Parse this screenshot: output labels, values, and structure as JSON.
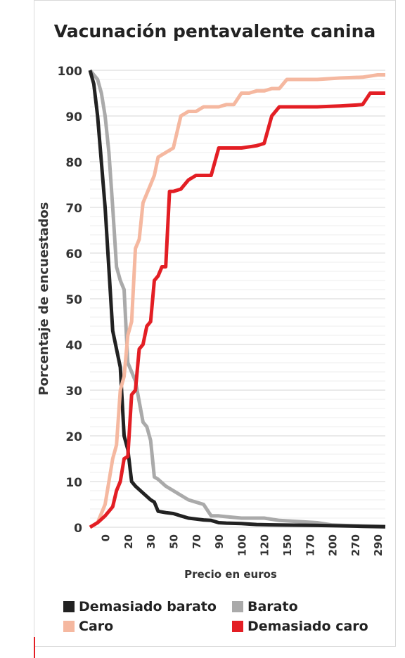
{
  "chart_data": {
    "type": "line",
    "title": "Vacunación pentavalente canina",
    "xlabel": "Precio en euros",
    "ylabel": "Porcentaje de encuestados",
    "ylim": [
      0,
      100
    ],
    "yticks": [
      "0",
      "10",
      "20",
      "30",
      "40",
      "50",
      "60",
      "70",
      "80",
      "90",
      "100"
    ],
    "xticks": [
      "0",
      "20",
      "30",
      "50",
      "70",
      "90",
      "100",
      "120",
      "150",
      "170",
      "200",
      "270",
      "290"
    ],
    "xtick_positions": [
      2,
      5,
      8,
      11,
      14,
      17,
      20,
      23,
      26,
      29,
      32,
      35,
      38
    ],
    "x_index_max": 39,
    "grid": true,
    "legend_position": "bottom",
    "series": [
      {
        "name": "Demasiado barato",
        "color": "#222222",
        "points": [
          [
            0,
            100
          ],
          [
            0.5,
            97
          ],
          [
            1,
            90
          ],
          [
            2,
            70
          ],
          [
            3,
            43
          ],
          [
            4,
            35
          ],
          [
            4.5,
            20
          ],
          [
            5,
            17
          ],
          [
            5.5,
            10
          ],
          [
            6,
            9
          ],
          [
            7,
            7.5
          ],
          [
            8,
            6
          ],
          [
            8.5,
            5.5
          ],
          [
            9,
            3.5
          ],
          [
            10,
            3.2
          ],
          [
            11,
            3
          ],
          [
            12,
            2.5
          ],
          [
            13,
            2
          ],
          [
            14,
            1.8
          ],
          [
            15,
            1.6
          ],
          [
            16,
            1.5
          ],
          [
            17,
            1
          ],
          [
            18,
            0.9
          ],
          [
            20,
            0.8
          ],
          [
            22,
            0.6
          ],
          [
            25,
            0.5
          ],
          [
            30,
            0.4
          ],
          [
            33,
            0.3
          ],
          [
            36,
            0.2
          ],
          [
            39,
            0.1
          ]
        ]
      },
      {
        "name": "Barato",
        "color": "#aaaaaa",
        "points": [
          [
            0,
            100
          ],
          [
            1,
            98
          ],
          [
            1.5,
            95
          ],
          [
            2,
            90
          ],
          [
            2.5,
            82
          ],
          [
            3,
            70
          ],
          [
            3.5,
            57
          ],
          [
            4,
            54
          ],
          [
            4.5,
            52
          ],
          [
            5,
            36
          ],
          [
            5.5,
            34
          ],
          [
            6,
            32
          ],
          [
            7,
            23
          ],
          [
            7.5,
            22
          ],
          [
            8,
            19
          ],
          [
            8.5,
            11
          ],
          [
            9,
            10.5
          ],
          [
            10,
            9
          ],
          [
            11,
            8
          ],
          [
            12,
            7
          ],
          [
            13,
            6
          ],
          [
            14,
            5.5
          ],
          [
            15,
            5
          ],
          [
            16,
            2.5
          ],
          [
            17,
            2.5
          ],
          [
            18,
            2.3
          ],
          [
            20,
            2
          ],
          [
            22,
            2
          ],
          [
            23,
            2
          ],
          [
            25,
            1.5
          ],
          [
            30,
            1
          ],
          [
            32,
            0.5
          ],
          [
            35,
            0.3
          ],
          [
            39,
            0.2
          ]
        ]
      },
      {
        "name": "Caro",
        "color": "#f5b8a0",
        "points": [
          [
            0,
            0
          ],
          [
            1,
            1
          ],
          [
            2,
            5
          ],
          [
            2.5,
            10
          ],
          [
            3,
            15
          ],
          [
            3.5,
            18
          ],
          [
            4,
            30
          ],
          [
            4.5,
            33
          ],
          [
            5,
            42
          ],
          [
            5.5,
            45
          ],
          [
            6,
            61
          ],
          [
            6.5,
            63
          ],
          [
            7,
            71
          ],
          [
            7.5,
            73
          ],
          [
            8,
            75
          ],
          [
            8.5,
            77
          ],
          [
            9,
            81
          ],
          [
            10,
            82
          ],
          [
            10.5,
            82.5
          ],
          [
            11,
            83
          ],
          [
            12,
            90
          ],
          [
            13,
            91
          ],
          [
            14,
            91
          ],
          [
            15,
            92
          ],
          [
            16,
            92
          ],
          [
            17,
            92
          ],
          [
            18,
            92.5
          ],
          [
            19,
            92.5
          ],
          [
            20,
            95
          ],
          [
            21,
            95
          ],
          [
            22,
            95.5
          ],
          [
            23,
            95.5
          ],
          [
            24,
            96
          ],
          [
            25,
            96
          ],
          [
            26,
            98
          ],
          [
            27,
            98
          ],
          [
            30,
            98
          ],
          [
            33,
            98.3
          ],
          [
            36,
            98.5
          ],
          [
            38,
            99
          ],
          [
            39,
            99
          ]
        ]
      },
      {
        "name": "Demasiado caro",
        "color": "#e31e24",
        "points": [
          [
            0,
            0
          ],
          [
            1,
            1
          ],
          [
            2,
            2.5
          ],
          [
            3,
            4.5
          ],
          [
            3.5,
            8
          ],
          [
            4,
            10
          ],
          [
            4.5,
            15
          ],
          [
            5,
            15.5
          ],
          [
            5.5,
            29
          ],
          [
            6,
            30
          ],
          [
            6.5,
            39
          ],
          [
            7,
            40
          ],
          [
            7.5,
            44
          ],
          [
            8,
            45
          ],
          [
            8.5,
            54
          ],
          [
            9,
            55
          ],
          [
            9.5,
            57
          ],
          [
            10,
            57
          ],
          [
            10.5,
            73.5
          ],
          [
            11,
            73.5
          ],
          [
            12,
            74
          ],
          [
            13,
            76
          ],
          [
            14,
            77
          ],
          [
            15,
            77
          ],
          [
            16,
            77
          ],
          [
            17,
            83
          ],
          [
            18,
            83
          ],
          [
            20,
            83
          ],
          [
            22,
            83.5
          ],
          [
            23,
            84
          ],
          [
            24,
            90
          ],
          [
            25,
            92
          ],
          [
            27,
            92
          ],
          [
            30,
            92
          ],
          [
            33,
            92.2
          ],
          [
            36,
            92.5
          ],
          [
            37,
            95
          ],
          [
            39,
            95
          ]
        ]
      }
    ]
  },
  "legend": {
    "items": [
      {
        "label": "Demasiado barato",
        "color": "#222222"
      },
      {
        "label": "Barato",
        "color": "#aaaaaa"
      },
      {
        "label": "Caro",
        "color": "#f5b8a0"
      },
      {
        "label": "Demasiado caro",
        "color": "#e31e24"
      }
    ]
  }
}
